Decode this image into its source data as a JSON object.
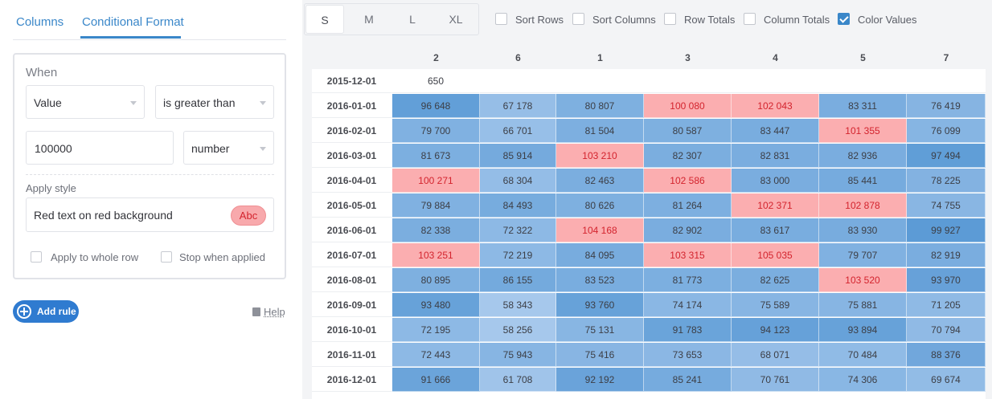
{
  "tabs": [
    {
      "label": "Columns",
      "active": false
    },
    {
      "label": "Conditional Format",
      "active": true
    }
  ],
  "rule": {
    "when_label": "When",
    "field": "Value",
    "operator": "is greater than",
    "threshold": "100000",
    "value_type": "number",
    "apply_style_label": "Apply style",
    "style": "Red text on red background",
    "style_preview": "Abc",
    "apply_whole_row_label": "Apply to whole row",
    "apply_whole_row": false,
    "stop_when_applied_label": "Stop when applied",
    "stop_when_applied": false
  },
  "add_rule_label": "Add rule",
  "help_label": "Help",
  "toolbar": {
    "sizes": [
      "S",
      "M",
      "L",
      "XL"
    ],
    "active_size": "S",
    "options": [
      {
        "label": "Sort Rows",
        "checked": false
      },
      {
        "label": "Sort Columns",
        "checked": false
      },
      {
        "label": "Row Totals",
        "checked": false
      },
      {
        "label": "Column Totals",
        "checked": false
      },
      {
        "label": "Color Values",
        "checked": true
      }
    ]
  },
  "colors": {
    "accent": "#3a87c9",
    "highlight_bg": "#fbaeb0",
    "highlight_text": "#d3232d",
    "heat_low": "#a6c8ec",
    "heat_high": "#5c9bd6"
  },
  "table": {
    "columns": [
      "2",
      "6",
      "1",
      "3",
      "4",
      "5",
      "7"
    ],
    "rows": [
      {
        "label": "2015-12-01",
        "values": [
          650,
          null,
          null,
          null,
          null,
          null,
          null
        ]
      },
      {
        "label": "2016-01-01",
        "values": [
          96648,
          67178,
          80807,
          100080,
          102043,
          83311,
          76419
        ]
      },
      {
        "label": "2016-02-01",
        "values": [
          79700,
          66701,
          81504,
          80587,
          83447,
          101355,
          76099
        ]
      },
      {
        "label": "2016-03-01",
        "values": [
          81673,
          85914,
          103210,
          82307,
          82831,
          82936,
          97494
        ]
      },
      {
        "label": "2016-04-01",
        "values": [
          100271,
          68304,
          82463,
          102586,
          83000,
          85441,
          78225
        ]
      },
      {
        "label": "2016-05-01",
        "values": [
          79884,
          84493,
          80626,
          81264,
          102371,
          102878,
          74755
        ]
      },
      {
        "label": "2016-06-01",
        "values": [
          82338,
          72322,
          104168,
          82902,
          83617,
          83930,
          99927
        ]
      },
      {
        "label": "2016-07-01",
        "values": [
          103251,
          72219,
          84095,
          103315,
          105035,
          79707,
          82919
        ]
      },
      {
        "label": "2016-08-01",
        "values": [
          80895,
          86155,
          83523,
          81773,
          82625,
          103520,
          93970
        ]
      },
      {
        "label": "2016-09-01",
        "values": [
          93480,
          58343,
          93760,
          74174,
          75589,
          75881,
          71205
        ]
      },
      {
        "label": "2016-10-01",
        "values": [
          72195,
          58256,
          75131,
          91783,
          94123,
          93894,
          70794
        ]
      },
      {
        "label": "2016-11-01",
        "values": [
          72443,
          75943,
          75416,
          73653,
          68071,
          70484,
          88376
        ]
      },
      {
        "label": "2016-12-01",
        "values": [
          91666,
          61708,
          92192,
          85241,
          70761,
          74306,
          69674
        ]
      }
    ]
  }
}
